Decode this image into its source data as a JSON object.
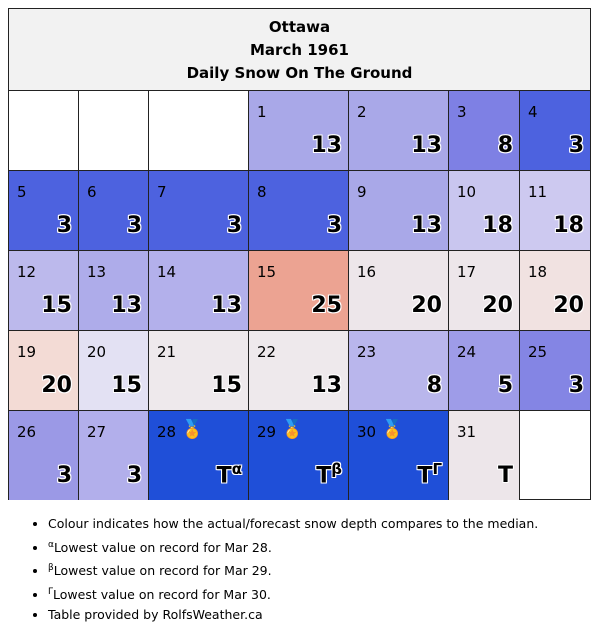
{
  "header": {
    "city": "Ottawa",
    "month": "March 1961",
    "subtitle": "Daily Snow On The Ground"
  },
  "days": [
    {
      "day": "1",
      "value": "13",
      "color": "#a9a8e8"
    },
    {
      "day": "2",
      "value": "13",
      "color": "#a9a8e8"
    },
    {
      "day": "3",
      "value": "8",
      "color": "#7e80e4"
    },
    {
      "day": "4",
      "value": "3",
      "color": "#4d62df"
    },
    {
      "day": "5",
      "value": "3",
      "color": "#4d62df"
    },
    {
      "day": "6",
      "value": "3",
      "color": "#4d62df"
    },
    {
      "day": "7",
      "value": "3",
      "color": "#4d62df"
    },
    {
      "day": "8",
      "value": "3",
      "color": "#4d62df"
    },
    {
      "day": "9",
      "value": "13",
      "color": "#a9a8e8"
    },
    {
      "day": "10",
      "value": "18",
      "color": "#c9c6ef"
    },
    {
      "day": "11",
      "value": "18",
      "color": "#cdc9f0"
    },
    {
      "day": "12",
      "value": "15",
      "color": "#bcb9ec"
    },
    {
      "day": "13",
      "value": "13",
      "color": "#aeacea"
    },
    {
      "day": "14",
      "value": "13",
      "color": "#b3b0eb"
    },
    {
      "day": "15",
      "value": "25",
      "color": "#eca392"
    },
    {
      "day": "16",
      "value": "20",
      "color": "#ede6ea"
    },
    {
      "day": "17",
      "value": "20",
      "color": "#ede6ea"
    },
    {
      "day": "18",
      "value": "20",
      "color": "#f1e2e1"
    },
    {
      "day": "19",
      "value": "20",
      "color": "#f3dbd5"
    },
    {
      "day": "20",
      "value": "15",
      "color": "#e3e1f3"
    },
    {
      "day": "21",
      "value": "15",
      "color": "#eee9ec"
    },
    {
      "day": "22",
      "value": "13",
      "color": "#eee9ec"
    },
    {
      "day": "23",
      "value": "8",
      "color": "#b9b6ec"
    },
    {
      "day": "24",
      "value": "5",
      "color": "#9e9ce8"
    },
    {
      "day": "25",
      "value": "3",
      "color": "#8485e4"
    },
    {
      "day": "26",
      "value": "3",
      "color": "#9b99e6"
    },
    {
      "day": "27",
      "value": "3",
      "color": "#b2afeb"
    },
    {
      "day": "28",
      "value": "T",
      "sup": "α",
      "medal": "🏅",
      "color": "#1f4fd8"
    },
    {
      "day": "29",
      "value": "T",
      "sup": "β",
      "medal": "🏅",
      "color": "#1f4fd8"
    },
    {
      "day": "30",
      "value": "T",
      "sup": "Γ",
      "medal": "🏅",
      "color": "#1f4fd8"
    },
    {
      "day": "31",
      "value": "T",
      "color": "#ede6ea"
    }
  ],
  "notes": [
    {
      "text": "Colour indicates how the actual/forecast snow depth compares to the median."
    },
    {
      "sup": "α",
      "text": "Lowest value on record for Mar 28."
    },
    {
      "sup": "β",
      "text": "Lowest value on record for Mar 29."
    },
    {
      "sup": "Γ",
      "text": "Lowest value on record for Mar 30."
    },
    {
      "text": "Table provided by RolfsWeather.ca"
    }
  ],
  "colors": {
    "header_bg": "#f2f2f2",
    "border": "#222222"
  }
}
